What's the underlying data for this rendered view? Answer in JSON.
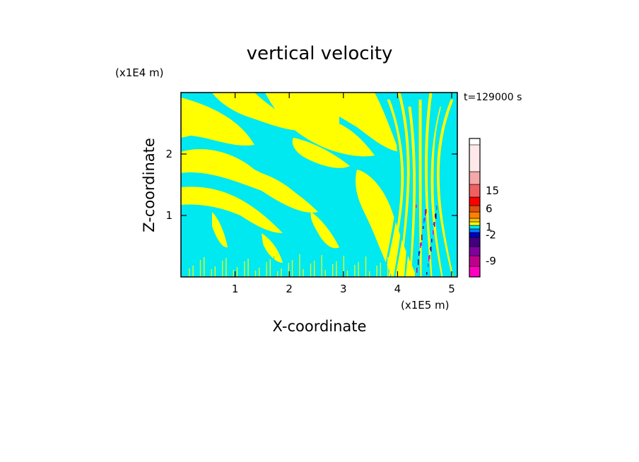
{
  "chart_data": {
    "type": "heatmap",
    "title": "vertical velocity",
    "xlabel": "X-coordinate",
    "ylabel": "Z-coordinate",
    "x_unit": "(x1E5 m)",
    "y_unit": "(x1E4 m)",
    "time_label": "t=129000 s",
    "xlim": [
      0,
      5.15
    ],
    "ylim": [
      0,
      3.0
    ],
    "x_ticks": [
      "1",
      "2",
      "3",
      "4",
      "5"
    ],
    "y_ticks": [
      "1",
      "2"
    ],
    "colorbar": {
      "labels": [
        "15",
        "6",
        "1",
        "-2",
        "-9"
      ],
      "label_values": [
        15,
        6,
        1,
        -2,
        -9
      ],
      "colors": [
        "#ff00c0",
        "#c0008c",
        "#8000a0",
        "#400080",
        "#0000c0",
        "#0080ff",
        "#00e8f0",
        "#ffff00",
        "#ffc000",
        "#ff8000",
        "#e05010",
        "#ff0000",
        "#f06060",
        "#f4a8a8",
        "#ffe8e8"
      ]
    },
    "dominant_colors": {
      "positive": "#ffff00",
      "negative": "#00e8f0"
    }
  }
}
